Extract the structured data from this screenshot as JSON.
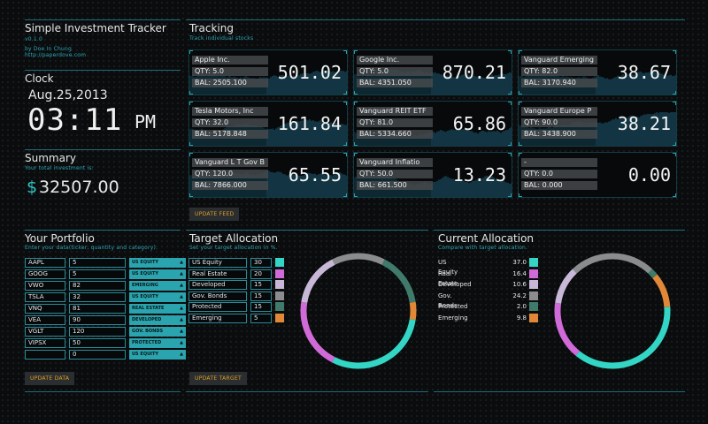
{
  "app": {
    "title": "Simple Investment Tracker",
    "version": "v0.1.0",
    "author": "by Doe In Chung",
    "site": "http://paperdove.com"
  },
  "clock": {
    "title": "Clock",
    "date": "Aug.25,2013",
    "time": "03:11",
    "ampm": "PM"
  },
  "summary": {
    "title": "Summary",
    "subtitle": "Your total investment is:",
    "currency": "$",
    "amount": "32507.00"
  },
  "tracking": {
    "title": "Tracking",
    "subtitle": "Track individual stocks",
    "update_label": "UPDATE FEED",
    "tiles": [
      {
        "name": "Apple Inc.",
        "qty": "QTY: 5.0",
        "bal": "BAL: 2505.100",
        "price": "501.02"
      },
      {
        "name": "Google Inc.",
        "qty": "QTY: 5.0",
        "bal": "BAL: 4351.050",
        "price": "870.21"
      },
      {
        "name": "Vanguard Emerging",
        "qty": "QTY: 82.0",
        "bal": "BAL: 3170.940",
        "price": "38.67"
      },
      {
        "name": "Tesla Motors, Inc",
        "qty": "QTY: 32.0",
        "bal": "BAL: 5178.848",
        "price": "161.84"
      },
      {
        "name": "Vanguard REIT ETF",
        "qty": "QTY: 81.0",
        "bal": "BAL: 5334.660",
        "price": "65.86"
      },
      {
        "name": "Vanguard Europe P",
        "qty": "QTY: 90.0",
        "bal": "BAL: 3438.900",
        "price": "38.21"
      },
      {
        "name": "Vanguard L T Gov B",
        "qty": "QTY: 120.0",
        "bal": "BAL: 7866.000",
        "price": "65.55"
      },
      {
        "name": "Vanguard Inflatio",
        "qty": "QTY: 50.0",
        "bal": "BAL: 661.500",
        "price": "13.23"
      },
      {
        "name": "-",
        "qty": "QTY: 0.0",
        "bal": "BAL: 0.000",
        "price": "0.00"
      }
    ]
  },
  "portfolio": {
    "title": "Your Portfolio",
    "subtitle": "Enter your data(ticker, quantity and category).",
    "update_label": "UPDATE DATA",
    "rows": [
      {
        "ticker": "AAPL",
        "qty": "5",
        "category": "US EQUITY"
      },
      {
        "ticker": "GOOG",
        "qty": "5",
        "category": "US EQUITY"
      },
      {
        "ticker": "VWO",
        "qty": "82",
        "category": "EMERGING"
      },
      {
        "ticker": "TSLA",
        "qty": "32",
        "category": "US EQUITY"
      },
      {
        "ticker": "VNQ",
        "qty": "81",
        "category": "REAL ESTATE"
      },
      {
        "ticker": "VEA",
        "qty": "90",
        "category": "DEVELOPED"
      },
      {
        "ticker": "VGLT",
        "qty": "120",
        "category": "GOV. BONDS"
      },
      {
        "ticker": "VIPSX",
        "qty": "50",
        "category": "PROTECTED"
      },
      {
        "ticker": "",
        "qty": "0",
        "category": "US EQUITY"
      }
    ]
  },
  "target": {
    "title": "Target Allocation",
    "subtitle": "Set your target allocation in %.",
    "update_label": "UPDATE TARGET",
    "rows": [
      {
        "name": "US Equity",
        "value": "30",
        "color": "#33d6c4"
      },
      {
        "name": "Real Estate",
        "value": "20",
        "color": "#d06ad8"
      },
      {
        "name": "Developed",
        "value": "15",
        "color": "#c7b8d8"
      },
      {
        "name": "Gov. Bonds",
        "value": "15",
        "color": "#8a8c8e"
      },
      {
        "name": "Protected",
        "value": "15",
        "color": "#3f7a6a"
      },
      {
        "name": "Emerging",
        "value": "5",
        "color": "#e08838"
      }
    ]
  },
  "current": {
    "title": "Current Allocation",
    "subtitle": "Compare with target allocation.",
    "rows": [
      {
        "name": "US Equity",
        "value": "37.0",
        "color": "#33d6c4"
      },
      {
        "name": "Real Estate",
        "value": "16.4",
        "color": "#d06ad8"
      },
      {
        "name": "Developed",
        "value": "10.6",
        "color": "#c7b8d8"
      },
      {
        "name": "Gov. Bonds",
        "value": "24.2",
        "color": "#8a8c8e"
      },
      {
        "name": "Protected",
        "value": "2.0",
        "color": "#3f7a6a"
      },
      {
        "name": "Emerging",
        "value": "9.8",
        "color": "#e08838"
      }
    ]
  }
}
